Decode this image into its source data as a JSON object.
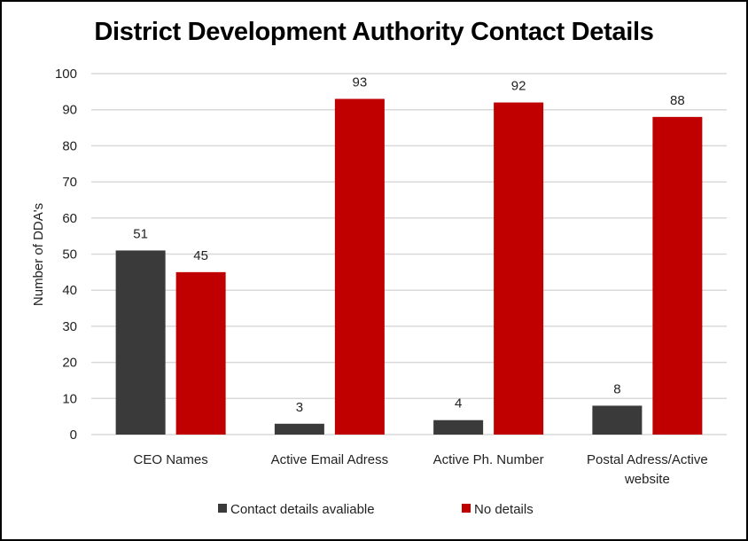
{
  "chart_data": {
    "type": "bar",
    "title": "District Development Authority Contact Details",
    "xlabel": "",
    "ylabel": "Number of DDA's",
    "ylim": [
      0,
      100
    ],
    "yticks": [
      0,
      10,
      20,
      30,
      40,
      50,
      60,
      70,
      80,
      90,
      100
    ],
    "grid": true,
    "legend_position": "bottom",
    "categories": [
      [
        "CEO Names"
      ],
      [
        "Active Email Adress"
      ],
      [
        "Active Ph. Number"
      ],
      [
        "Postal Adress/Active",
        "website"
      ]
    ],
    "series": [
      {
        "name": "Contact details avaliable",
        "color": "#3a3a3a",
        "values": [
          51,
          3,
          4,
          8
        ]
      },
      {
        "name": "No details",
        "color": "#c00000",
        "values": [
          45,
          93,
          92,
          88
        ]
      }
    ]
  }
}
